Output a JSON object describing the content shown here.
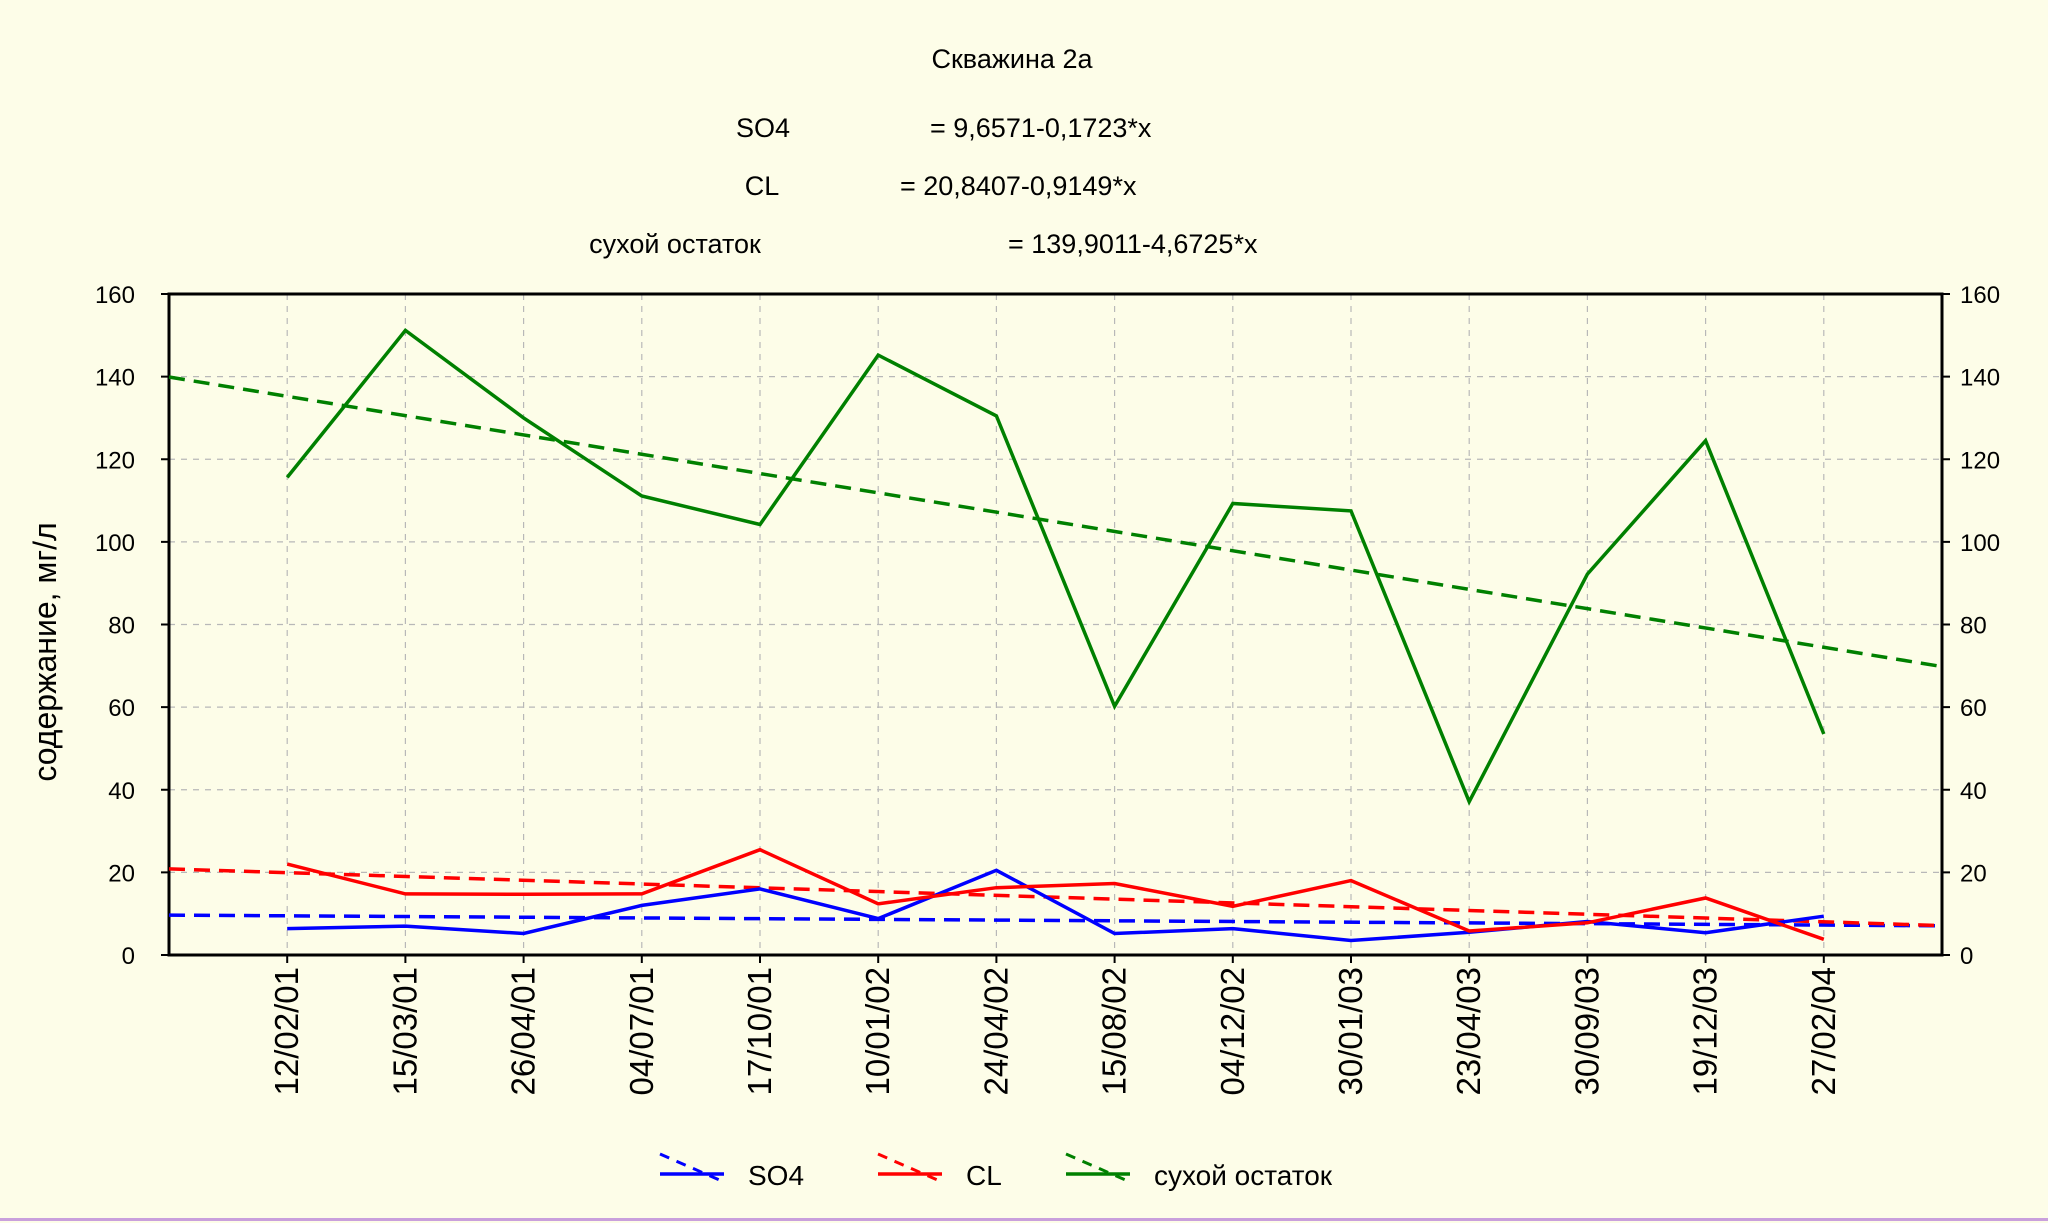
{
  "chart_data": {
    "type": "line",
    "title": "Скважина 2а",
    "equations": [
      {
        "name": "SO4",
        "formula": "= 9,6571-0,1723*x"
      },
      {
        "name": "CL",
        "formula": "= 20,8407-0,9149*x"
      },
      {
        "name": "сухой остаток",
        "formula": "= 139,9011-4,6725*x"
      }
    ],
    "xlabel": "",
    "ylabel": "содержание, мг/л",
    "categories": [
      "12/02/01",
      "15/03/01",
      "26/04/01",
      "04/07/01",
      "17/10/01",
      "10/01/02",
      "24/04/02",
      "15/08/02",
      "04/12/02",
      "30/01/03",
      "23/04/03",
      "30/09/03",
      "19/12/03",
      "27/02/04"
    ],
    "ylim": [
      0,
      160
    ],
    "yticks": [
      0,
      20,
      40,
      60,
      80,
      100,
      120,
      140,
      160
    ],
    "grid": true,
    "legend_position": "bottom",
    "series": [
      {
        "name": "SO4",
        "color": "#0000ff",
        "values": [
          6.4,
          7.0,
          5.2,
          12.0,
          16.0,
          8.8,
          20.5,
          5.2,
          6.4,
          3.5,
          5.5,
          8.1,
          5.4,
          9.4
        ],
        "trend": {
          "intercept": 9.6571,
          "slope": -0.1723
        }
      },
      {
        "name": "CL",
        "color": "#ff0000",
        "values": [
          22.0,
          14.8,
          14.7,
          14.8,
          25.5,
          12.4,
          16.3,
          17.3,
          11.8,
          18.0,
          5.8,
          7.8,
          13.8,
          3.8
        ],
        "trend": {
          "intercept": 20.8407,
          "slope": -0.9149
        }
      },
      {
        "name": "сухой остаток",
        "color": "#008000",
        "values": [
          115.6,
          151.2,
          130.0,
          111.1,
          104.2,
          145.2,
          130.5,
          60.2,
          109.3,
          107.5,
          37.1,
          92.2,
          124.5,
          53.5
        ],
        "trend": {
          "intercept": 139.9011,
          "slope": -4.6725
        }
      }
    ]
  }
}
